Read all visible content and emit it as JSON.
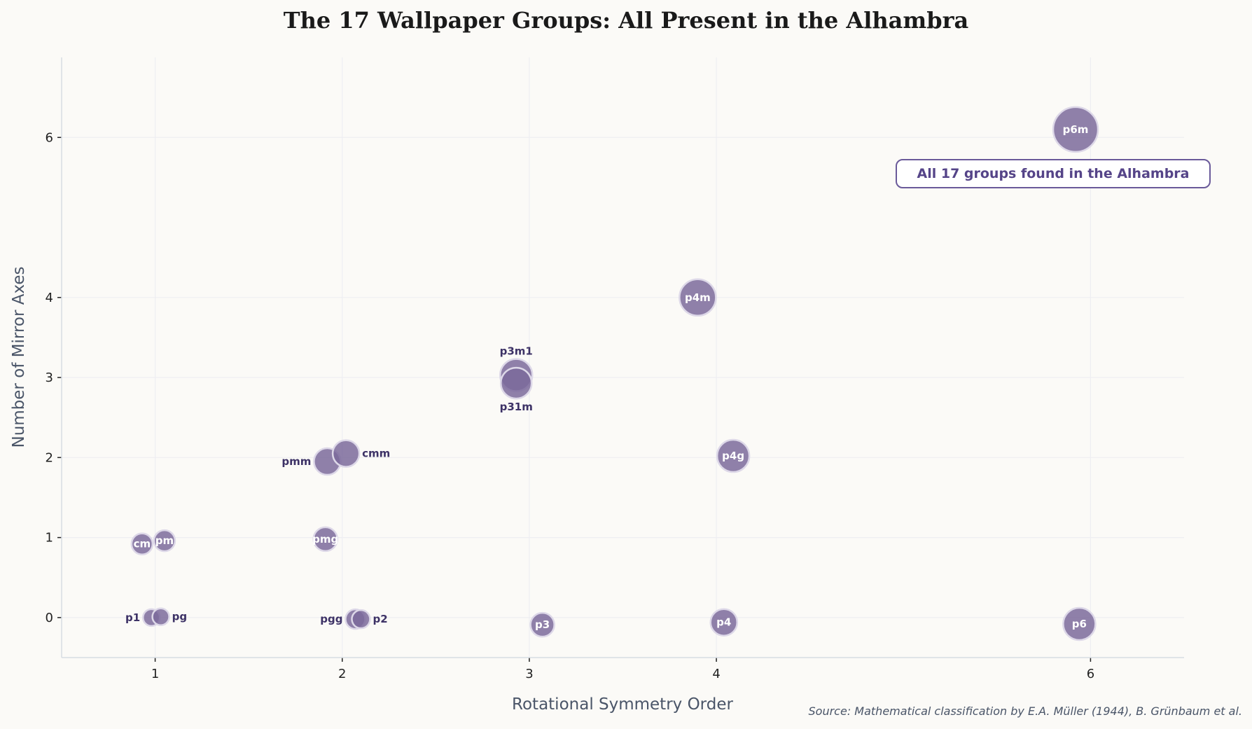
{
  "chart_data": {
    "type": "scatter",
    "title": "The 17 Wallpaper Groups: All Present in the Alhambra",
    "xlabel": "Rotational Symmetry Order",
    "ylabel": "Number of Mirror Axes",
    "xlim": [
      0.5,
      6.5
    ],
    "ylim": [
      -0.5,
      7
    ],
    "xticks": [
      1,
      2,
      3,
      4,
      6
    ],
    "yticks": [
      0,
      1,
      2,
      3,
      4,
      6
    ],
    "grid": true,
    "marker_color": "#7b6a9b",
    "marker_edge_color": "#ddd8e8",
    "points": [
      {
        "label": "p1",
        "x": 0.98,
        "y": 0.0,
        "size": 12
      },
      {
        "label": "pg",
        "x": 1.03,
        "y": 0.01,
        "size": 12
      },
      {
        "label": "cm",
        "x": 0.93,
        "y": 0.92,
        "size": 15
      },
      {
        "label": "pm",
        "x": 1.05,
        "y": 0.96,
        "size": 15
      },
      {
        "label": "pmg",
        "x": 1.91,
        "y": 0.98,
        "size": 17
      },
      {
        "label": "pmm",
        "x": 1.92,
        "y": 1.95,
        "size": 19
      },
      {
        "label": "cmm",
        "x": 2.02,
        "y": 2.05,
        "size": 19
      },
      {
        "label": "pgg",
        "x": 2.07,
        "y": -0.02,
        "size": 14
      },
      {
        "label": "p2",
        "x": 2.1,
        "y": -0.02,
        "size": 13
      },
      {
        "label": "p3m1",
        "x": 2.93,
        "y": 3.03,
        "size": 23
      },
      {
        "label": "p31m",
        "x": 2.93,
        "y": 2.93,
        "size": 22
      },
      {
        "label": "p3",
        "x": 3.07,
        "y": -0.09,
        "size": 17
      },
      {
        "label": "p4",
        "x": 4.04,
        "y": -0.06,
        "size": 19
      },
      {
        "label": "p4g",
        "x": 4.09,
        "y": 2.02,
        "size": 23
      },
      {
        "label": "p4m",
        "x": 3.9,
        "y": 4.0,
        "size": 26
      },
      {
        "label": "p6",
        "x": 5.94,
        "y": -0.08,
        "size": 23
      },
      {
        "label": "p6m",
        "x": 5.92,
        "y": 6.1,
        "size": 32
      }
    ],
    "annotation": "All 17 groups found in the Alhambra",
    "source": "Source: Mathematical classification by E.A. Müller (1944), B. Grünbaum et al."
  }
}
